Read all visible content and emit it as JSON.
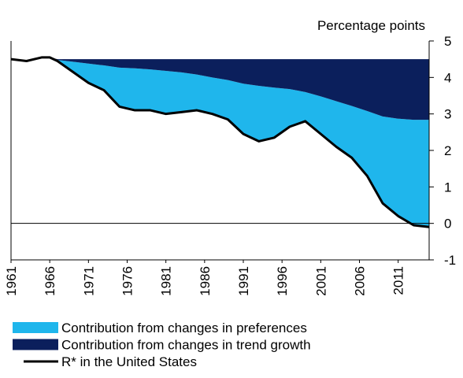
{
  "chart_data": {
    "type": "stacked-area-line",
    "y_label": "Percentage points",
    "x": [
      1961,
      1963,
      1965,
      1966,
      1967,
      1969,
      1971,
      1973,
      1975,
      1977,
      1979,
      1981,
      1983,
      1985,
      1987,
      1989,
      1991,
      1993,
      1995,
      1997,
      1999,
      2001,
      2003,
      2005,
      2007,
      2009,
      2011,
      2013,
      2015
    ],
    "series": [
      {
        "name": "R* in the United States",
        "color": "#000000",
        "role": "line",
        "values": [
          4.5,
          4.45,
          4.55,
          4.55,
          4.45,
          4.15,
          3.85,
          3.65,
          3.2,
          3.1,
          3.1,
          3.0,
          3.05,
          3.1,
          3.0,
          2.85,
          2.45,
          2.25,
          2.35,
          2.65,
          2.8,
          2.45,
          2.1,
          1.8,
          1.3,
          0.55,
          0.2,
          -0.05,
          -0.1
        ]
      },
      {
        "name": "Contribution from changes in preferences",
        "color": "#1fb6ec",
        "role": "area",
        "values": [
          0,
          0,
          0,
          0,
          0.03,
          0.28,
          0.53,
          0.68,
          1.07,
          1.15,
          1.12,
          1.18,
          1.09,
          0.98,
          1.0,
          1.08,
          1.38,
          1.52,
          1.37,
          1.03,
          0.8,
          1.03,
          1.25,
          1.42,
          1.78,
          2.38,
          2.67,
          2.89,
          2.94
        ]
      },
      {
        "name": "Contribution from changes in trend growth",
        "color": "#0b1f5c",
        "role": "area",
        "values": [
          0,
          0,
          0,
          0,
          0.02,
          0.07,
          0.12,
          0.17,
          0.23,
          0.25,
          0.28,
          0.32,
          0.36,
          0.42,
          0.5,
          0.57,
          0.67,
          0.73,
          0.78,
          0.82,
          0.9,
          1.02,
          1.15,
          1.28,
          1.42,
          1.57,
          1.63,
          1.66,
          1.66
        ]
      }
    ],
    "legend_order": [
      1,
      2,
      0
    ],
    "xlim": [
      1961,
      2015
    ],
    "xticks": [
      1961,
      1966,
      1971,
      1976,
      1981,
      1986,
      1991,
      1996,
      2001,
      2006,
      2011
    ],
    "ylim": [
      -1,
      5
    ],
    "yticks": [
      -1,
      0,
      1,
      2,
      3,
      4,
      5
    ],
    "y_axis_side": "right"
  }
}
